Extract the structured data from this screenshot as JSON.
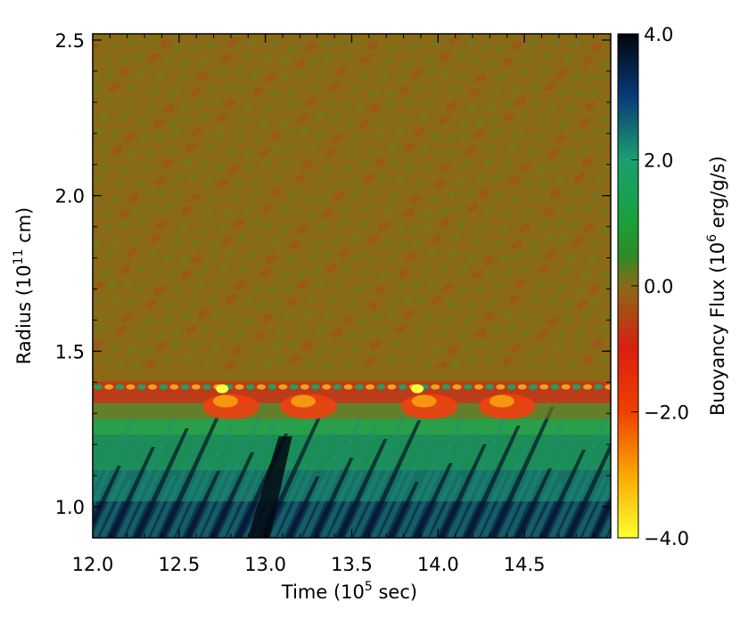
{
  "chart_data": {
    "type": "heatmap",
    "title": "",
    "xlabel": "Time (10",
    "xlabel_sup": "5",
    "xlabel_tail": " sec)",
    "ylabel": "Radius (10",
    "ylabel_sup": "11",
    "ylabel_tail": " cm)",
    "xlim": [
      12.0,
      15.0
    ],
    "ylim": [
      0.9,
      2.52
    ],
    "x_ticks": [
      12.0,
      12.5,
      13.0,
      13.5,
      14.0,
      14.5
    ],
    "x_tick_labels": [
      "12.0",
      "12.5",
      "13.0",
      "13.5",
      "14.0",
      "14.5"
    ],
    "y_ticks": [
      1.0,
      1.5,
      2.0,
      2.5
    ],
    "y_tick_labels": [
      "1.0",
      "1.5",
      "2.0",
      "2.5"
    ],
    "colorbar": {
      "label": "Buoyancy Flux (10",
      "label_sup": "6",
      "label_tail": " erg/g/s)",
      "range": [
        -4.0,
        4.0
      ],
      "ticks": [
        4.0,
        2.0,
        0.0,
        -2.0,
        -4.0
      ],
      "tick_labels": [
        "4.0",
        "2.0",
        "0.0",
        "−2.0",
        "−4.0"
      ],
      "colormap": [
        {
          "value": -4.0,
          "color": "#ffff30"
        },
        {
          "value": -3.0,
          "color": "#f8a800"
        },
        {
          "value": -2.0,
          "color": "#f04000"
        },
        {
          "value": -1.0,
          "color": "#d82010"
        },
        {
          "value": 0.0,
          "color": "#8a6a16"
        },
        {
          "value": 0.5,
          "color": "#2f8a28"
        },
        {
          "value": 1.0,
          "color": "#1aa03a"
        },
        {
          "value": 2.0,
          "color": "#1aa070"
        },
        {
          "value": 3.0,
          "color": "#0a3a78"
        },
        {
          "value": 4.0,
          "color": "#02050f"
        }
      ]
    },
    "features": {
      "interface_radius": 1.385,
      "convective_zone_value": 1.6,
      "interface_value": -1.3,
      "background_value": -0.1
    }
  }
}
